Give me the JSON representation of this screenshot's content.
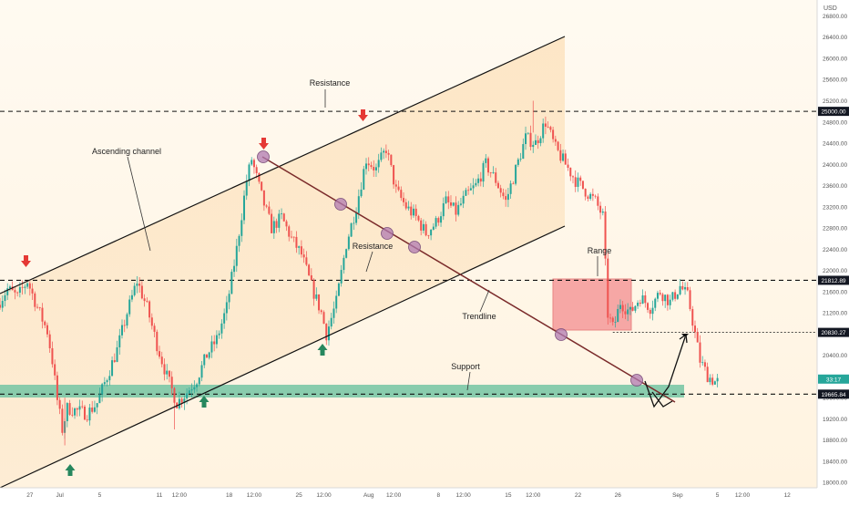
{
  "chart_data": {
    "type": "candlestick",
    "currency": "USD",
    "y_axis_ticks": [
      18000,
      18400,
      18800,
      19200,
      19600,
      20000,
      20400,
      20800,
      21200,
      21600,
      22000,
      22400,
      22800,
      23200,
      23600,
      24000,
      24400,
      24800,
      25200,
      25600,
      26000,
      26400,
      26800
    ],
    "ylim": [
      17900,
      27100
    ],
    "x_axis_ticks": [
      {
        "label": "27",
        "day": -3
      },
      {
        "label": "Jul",
        "day": 0
      },
      {
        "label": "5",
        "day": 4
      },
      {
        "label": "11",
        "day": 10
      },
      {
        "label": "12:00",
        "day": 12
      },
      {
        "label": "18",
        "day": 17
      },
      {
        "label": "12:00",
        "day": 19.5
      },
      {
        "label": "25",
        "day": 24
      },
      {
        "label": "12:00",
        "day": 26.5
      },
      {
        "label": "Aug",
        "day": 31
      },
      {
        "label": "12:00",
        "day": 33.5
      },
      {
        "label": "8",
        "day": 38
      },
      {
        "label": "12:00",
        "day": 40.5
      },
      {
        "label": "15",
        "day": 45
      },
      {
        "label": "12:00",
        "day": 47.5
      },
      {
        "label": "22",
        "day": 52
      },
      {
        "label": "26",
        "day": 56
      },
      {
        "label": "Sep",
        "day": 62
      },
      {
        "label": "5",
        "day": 66
      },
      {
        "label": "12:00",
        "day": 68.5
      },
      {
        "label": "12",
        "day": 73
      }
    ],
    "xlim": [
      -6,
      76
    ],
    "candle_path": [
      {
        "day": -6,
        "price": 21350
      },
      {
        "day": -5,
        "price": 21650
      },
      {
        "day": -4,
        "price": 21500
      },
      {
        "day": -3,
        "price": 21800
      },
      {
        "day": -2,
        "price": 21300
      },
      {
        "day": -1,
        "price": 20850
      },
      {
        "day": -0.5,
        "price": 20300
      },
      {
        "day": 0,
        "price": 19550
      },
      {
        "day": 0.5,
        "price": 19000
      },
      {
        "day": 1,
        "price": 19400
      },
      {
        "day": 2,
        "price": 19350
      },
      {
        "day": 3,
        "price": 19300
      },
      {
        "day": 4,
        "price": 19500
      },
      {
        "day": 5,
        "price": 20000
      },
      {
        "day": 6,
        "price": 20500
      },
      {
        "day": 7,
        "price": 21200
      },
      {
        "day": 8,
        "price": 21800
      },
      {
        "day": 9,
        "price": 21300
      },
      {
        "day": 10,
        "price": 20600
      },
      {
        "day": 11,
        "price": 20000
      },
      {
        "day": 12,
        "price": 19500
      },
      {
        "day": 13,
        "price": 19700
      },
      {
        "day": 14,
        "price": 19950
      },
      {
        "day": 15,
        "price": 20400
      },
      {
        "day": 16,
        "price": 20700
      },
      {
        "day": 17,
        "price": 21300
      },
      {
        "day": 18,
        "price": 22400
      },
      {
        "day": 19,
        "price": 23700
      },
      {
        "day": 19.5,
        "price": 24100
      },
      {
        "day": 20.5,
        "price": 23400
      },
      {
        "day": 21.5,
        "price": 22800
      },
      {
        "day": 22.5,
        "price": 23000
      },
      {
        "day": 23.5,
        "price": 22600
      },
      {
        "day": 24.5,
        "price": 22300
      },
      {
        "day": 25.5,
        "price": 21700
      },
      {
        "day": 26.5,
        "price": 21200
      },
      {
        "day": 27,
        "price": 20800
      },
      {
        "day": 28,
        "price": 21400
      },
      {
        "day": 29,
        "price": 22500
      },
      {
        "day": 30,
        "price": 23200
      },
      {
        "day": 31,
        "price": 24100
      },
      {
        "day": 32,
        "price": 23900
      },
      {
        "day": 33,
        "price": 24300
      },
      {
        "day": 34,
        "price": 23500
      },
      {
        "day": 35,
        "price": 23200
      },
      {
        "day": 36,
        "price": 23000
      },
      {
        "day": 37,
        "price": 22700
      },
      {
        "day": 38,
        "price": 22900
      },
      {
        "day": 39,
        "price": 23300
      },
      {
        "day": 40,
        "price": 23100
      },
      {
        "day": 41,
        "price": 23400
      },
      {
        "day": 42,
        "price": 23600
      },
      {
        "day": 43,
        "price": 24000
      },
      {
        "day": 44,
        "price": 23700
      },
      {
        "day": 45,
        "price": 23300
      },
      {
        "day": 46,
        "price": 23900
      },
      {
        "day": 47,
        "price": 24500
      },
      {
        "day": 48,
        "price": 24400
      },
      {
        "day": 49,
        "price": 24800
      },
      {
        "day": 50,
        "price": 24300
      },
      {
        "day": 51,
        "price": 24000
      },
      {
        "day": 52,
        "price": 23700
      },
      {
        "day": 53,
        "price": 23500
      },
      {
        "day": 54,
        "price": 23300
      },
      {
        "day": 54.8,
        "price": 23000
      },
      {
        "day": 55.2,
        "price": 21200
      },
      {
        "day": 55.8,
        "price": 20900
      },
      {
        "day": 56.5,
        "price": 21400
      },
      {
        "day": 57.5,
        "price": 21200
      },
      {
        "day": 58.5,
        "price": 21500
      },
      {
        "day": 59.5,
        "price": 21300
      },
      {
        "day": 60.5,
        "price": 21600
      },
      {
        "day": 61.5,
        "price": 21400
      },
      {
        "day": 62.5,
        "price": 21700
      },
      {
        "day": 63.3,
        "price": 21500
      },
      {
        "day": 64,
        "price": 20800
      },
      {
        "day": 64.5,
        "price": 20300
      },
      {
        "day": 65.3,
        "price": 20000
      },
      {
        "day": 66,
        "price": 19900
      }
    ],
    "horizontal_levels": [
      {
        "price": 25000.0,
        "label": "25000.00"
      },
      {
        "price": 21812.89,
        "label": "21812.89"
      },
      {
        "price": 20830.27,
        "label": "20830.27"
      },
      {
        "price": 19665.84,
        "label": "19665.84"
      }
    ],
    "current_price_box": {
      "label": "33:17",
      "price": 19950
    },
    "annotations": {
      "resistance_top": "Resistance",
      "ascending_channel": "Ascending channel",
      "resistance_mid": "Resistance",
      "range": "Range",
      "trendline": "Trendline",
      "support": "Support"
    },
    "colors": {
      "up_candle": "#26a69a",
      "down_candle": "#ef5350",
      "channel_fill": "#fde7c8",
      "support_zone": "#7cc8a6",
      "range_box": "#f6a5a5",
      "trendline": "#7a2a2a",
      "marker_circle": "#b07ab0",
      "up_arrow": "#26875e",
      "down_arrow": "#e53935"
    }
  }
}
